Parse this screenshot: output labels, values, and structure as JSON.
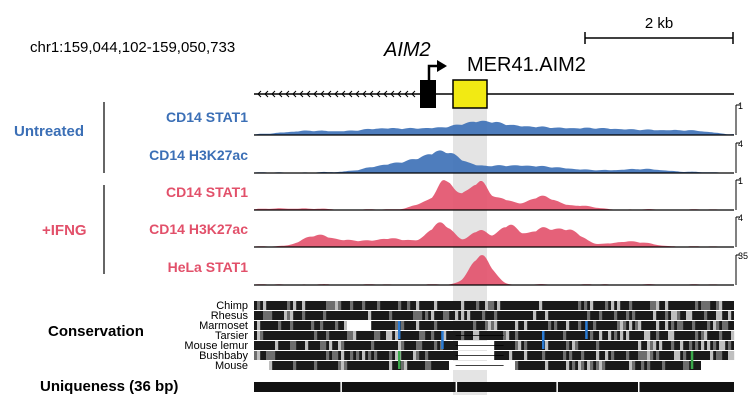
{
  "header": {
    "coordinates": "chr1:159,044,102-159,050,733",
    "scale_label": "2 kb"
  },
  "gene": {
    "name": "AIM2",
    "element": "MER41.AIM2"
  },
  "groups": [
    {
      "label": "Untreated",
      "color": "#3b6fb6"
    },
    {
      "label": "+IFNG",
      "color": "#e2506a"
    }
  ],
  "tracks": [
    {
      "label": "CD14 STAT1",
      "group": "Untreated",
      "color": "#3b6fb6",
      "ymax": "1",
      "peaks": [
        [
          0.1,
          0.1,
          0.04
        ],
        [
          0.3,
          0.22,
          0.1
        ],
        [
          0.47,
          0.32,
          0.05
        ],
        [
          0.58,
          0.22,
          0.08
        ],
        [
          0.75,
          0.18,
          0.08
        ],
        [
          0.9,
          0.12,
          0.05
        ]
      ]
    },
    {
      "label": "CD14 H3K27ac",
      "group": "Untreated",
      "color": "#3b6fb6",
      "ymax": "4",
      "peaks": [
        [
          0.27,
          0.15,
          0.05
        ],
        [
          0.37,
          0.45,
          0.06
        ],
        [
          0.4,
          0.32,
          0.03
        ],
        [
          0.53,
          0.22,
          0.05
        ],
        [
          0.63,
          0.15,
          0.05
        ],
        [
          0.8,
          0.12,
          0.06
        ]
      ]
    },
    {
      "label": "CD14 STAT1",
      "group": "+IFNG",
      "color": "#e2506a",
      "ymax": "1",
      "peaks": [
        [
          0.37,
          0.3,
          0.03
        ],
        [
          0.4,
          0.88,
          0.015
        ],
        [
          0.435,
          0.4,
          0.012
        ],
        [
          0.47,
          0.96,
          0.018
        ],
        [
          0.52,
          0.35,
          0.02
        ],
        [
          0.6,
          0.45,
          0.03
        ],
        [
          0.68,
          0.12,
          0.03
        ],
        [
          0.08,
          0.04,
          0.05
        ]
      ]
    },
    {
      "label": "CD14 H3K27ac",
      "group": "+IFNG",
      "color": "#e2506a",
      "ymax": "4",
      "peaks": [
        [
          0.13,
          0.38,
          0.03
        ],
        [
          0.2,
          0.18,
          0.03
        ],
        [
          0.29,
          0.28,
          0.04
        ],
        [
          0.39,
          0.8,
          0.025
        ],
        [
          0.47,
          0.55,
          0.02
        ],
        [
          0.53,
          0.72,
          0.02
        ],
        [
          0.6,
          0.6,
          0.03
        ],
        [
          0.66,
          0.5,
          0.025
        ],
        [
          0.78,
          0.18,
          0.04
        ]
      ]
    },
    {
      "label": "HeLa STAT1",
      "group": "+IFNG",
      "color": "#e2506a",
      "ymax": "35",
      "peaks": [
        [
          0.473,
          1.0,
          0.022
        ]
      ]
    }
  ],
  "conservation": {
    "title": "Conservation",
    "species": [
      "Chimp",
      "Rhesus",
      "Marmoset",
      "Tarsier",
      "Mouse lemur",
      "Bushbaby",
      "Mouse"
    ]
  },
  "uniqueness": {
    "title": "Uniqueness (36 bp)"
  }
}
